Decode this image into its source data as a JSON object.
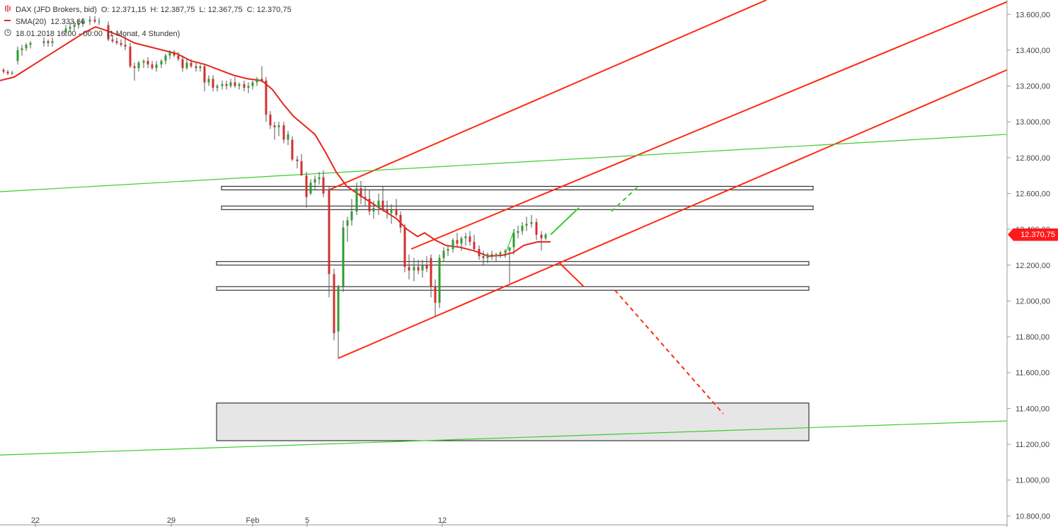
{
  "legend": {
    "symbol": "DAX (JFD Brokers, bid)",
    "open": "O: 12.371,15",
    "high": "H: 12.387,75",
    "low": "L: 12.367,75",
    "close": "C: 12.370,75",
    "sma_label": "SMA(20)",
    "sma_value": "12.333,66",
    "date": "18.01.2018 16:00 - 00:00",
    "period": "(1 Monat, 4 Stunden)"
  },
  "last_price_label": "12.370,75",
  "colors": {
    "up": "#2e9e2e",
    "down": "#d32f2f",
    "sma": "#e8261d",
    "channel": "#ff2a12",
    "trend_green": "#3ccc2c",
    "zone_fill": "#e6e6e6",
    "axis": "#999999",
    "price_tag": "#ff1a1a"
  },
  "icons": [
    "candles-icon",
    "sma-line-icon",
    "clock-icon"
  ],
  "chart_data": {
    "type": "candlestick",
    "title": "DAX (JFD Brokers, bid)",
    "interval": "4 Stunden",
    "ylim": [
      10750,
      13680
    ],
    "y_ticks": [
      10800,
      11000,
      11200,
      11400,
      11600,
      11800,
      12000,
      12200,
      12400,
      12600,
      12800,
      13000,
      13200,
      13400,
      13600
    ],
    "y_tick_labels": [
      "10.800,00",
      "11.000,00",
      "11.200,00",
      "11.400,00",
      "11.600,00",
      "11.800,00",
      "12.000,00",
      "12.200,00",
      "12.400,00",
      "12.600,00",
      "12.800,00",
      "13.000,00",
      "13.200,00",
      "13.400,00",
      "13.600,00"
    ],
    "x_range": [
      0,
      1423
    ],
    "x_ticks": [
      {
        "label": "22",
        "x": 50
      },
      {
        "label": "29",
        "x": 242
      },
      {
        "label": "Feb",
        "x": 357
      },
      {
        "label": "5",
        "x": 434
      },
      {
        "label": "12",
        "x": 625
      }
    ],
    "candles": [
      [
        5,
        13290,
        13300,
        13270,
        13280
      ],
      [
        11,
        13280,
        13290,
        13260,
        13270
      ],
      [
        17,
        13270,
        13285,
        13260,
        13275
      ],
      [
        25,
        13340,
        13420,
        13320,
        13400
      ],
      [
        31,
        13400,
        13430,
        13370,
        13410
      ],
      [
        37,
        13410,
        13440,
        13395,
        13430
      ],
      [
        43,
        13430,
        13450,
        13410,
        13440
      ],
      [
        62,
        13440,
        13470,
        13420,
        13450
      ],
      [
        68,
        13450,
        13460,
        13420,
        13440
      ],
      [
        74,
        13440,
        13470,
        13420,
        13450
      ],
      [
        93,
        13500,
        13540,
        13480,
        13520
      ],
      [
        99,
        13520,
        13550,
        13500,
        13530
      ],
      [
        105,
        13530,
        13560,
        13510,
        13540
      ],
      [
        111,
        13540,
        13570,
        13520,
        13550
      ],
      [
        117,
        13550,
        13580,
        13530,
        13560
      ],
      [
        127,
        13560,
        13590,
        13540,
        13570
      ],
      [
        134,
        13570,
        13590,
        13550,
        13560
      ],
      [
        140,
        13560,
        13580,
        13540,
        13560
      ],
      [
        153,
        13540,
        13560,
        13450,
        13460
      ],
      [
        159,
        13460,
        13480,
        13440,
        13450
      ],
      [
        165,
        13450,
        13470,
        13430,
        13440
      ],
      [
        171,
        13440,
        13460,
        13420,
        13430
      ],
      [
        177,
        13430,
        13480,
        13400,
        13420
      ],
      [
        184,
        13420,
        13440,
        13300,
        13310
      ],
      [
        190,
        13310,
        13330,
        13230,
        13300
      ],
      [
        196,
        13300,
        13340,
        13280,
        13330
      ],
      [
        203,
        13330,
        13350,
        13300,
        13340
      ],
      [
        209,
        13340,
        13360,
        13300,
        13320
      ],
      [
        215,
        13320,
        13340,
        13290,
        13300
      ],
      [
        221,
        13300,
        13340,
        13280,
        13320
      ],
      [
        228,
        13320,
        13350,
        13300,
        13340
      ],
      [
        234,
        13340,
        13380,
        13320,
        13370
      ],
      [
        240,
        13370,
        13400,
        13350,
        13390
      ],
      [
        246,
        13390,
        13400,
        13360,
        13370
      ],
      [
        252,
        13370,
        13390,
        13340,
        13350
      ],
      [
        258,
        13350,
        13370,
        13280,
        13300
      ],
      [
        264,
        13300,
        13350,
        13290,
        13330
      ],
      [
        270,
        13330,
        13350,
        13300,
        13310
      ],
      [
        277,
        13310,
        13330,
        13280,
        13300
      ],
      [
        283,
        13300,
        13320,
        13280,
        13310
      ],
      [
        289,
        13310,
        13320,
        13170,
        13220
      ],
      [
        295,
        13220,
        13260,
        13200,
        13240
      ],
      [
        301,
        13240,
        13260,
        13170,
        13190
      ],
      [
        307,
        13190,
        13210,
        13170,
        13200
      ],
      [
        314,
        13200,
        13230,
        13180,
        13210
      ],
      [
        320,
        13210,
        13230,
        13180,
        13200
      ],
      [
        326,
        13200,
        13240,
        13190,
        13220
      ],
      [
        332,
        13220,
        13250,
        13190,
        13200
      ],
      [
        338,
        13200,
        13220,
        13180,
        13210
      ],
      [
        345,
        13210,
        13230,
        13170,
        13190
      ],
      [
        351,
        13190,
        13220,
        13160,
        13200
      ],
      [
        357,
        13200,
        13230,
        13180,
        13220
      ],
      [
        363,
        13220,
        13250,
        13200,
        13240
      ],
      [
        370,
        13240,
        13310,
        13220,
        13230
      ],
      [
        376,
        13230,
        13250,
        13000,
        13040
      ],
      [
        382,
        13040,
        13060,
        12960,
        12980
      ],
      [
        388,
        12980,
        13000,
        12900,
        12970
      ],
      [
        394,
        12970,
        13000,
        12920,
        12980
      ],
      [
        401,
        12980,
        13000,
        12880,
        12900
      ],
      [
        407,
        12900,
        12950,
        12870,
        12930
      ],
      [
        413,
        12900,
        12920,
        12780,
        12790
      ],
      [
        420,
        12790,
        12810,
        12740,
        12780
      ],
      [
        426,
        12780,
        12820,
        12720,
        12700
      ],
      [
        433,
        12700,
        12720,
        12520,
        12580
      ],
      [
        439,
        12600,
        12680,
        12590,
        12660
      ],
      [
        445,
        12660,
        12700,
        12620,
        12680
      ],
      [
        451,
        12680,
        12720,
        12650,
        12690
      ],
      [
        457,
        12690,
        12730,
        12580,
        12600
      ],
      [
        465,
        12620,
        12640,
        12020,
        12150
      ],
      [
        472,
        12150,
        12180,
        11780,
        11820
      ],
      [
        478,
        11830,
        12090,
        11680,
        12080
      ],
      [
        485,
        12080,
        12450,
        12050,
        12410
      ],
      [
        491,
        12420,
        12470,
        12330,
        12450
      ],
      [
        497,
        12450,
        12570,
        12420,
        12500
      ],
      [
        504,
        12500,
        12660,
        12480,
        12630
      ],
      [
        510,
        12630,
        12670,
        12540,
        12580
      ],
      [
        516,
        12580,
        12640,
        12530,
        12570
      ],
      [
        522,
        12570,
        12620,
        12480,
        12500
      ],
      [
        528,
        12500,
        12560,
        12460,
        12520
      ],
      [
        535,
        12520,
        12600,
        12480,
        12560
      ],
      [
        541,
        12560,
        12640,
        12500,
        12510
      ],
      [
        547,
        12510,
        12560,
        12460,
        12490
      ],
      [
        553,
        12490,
        12540,
        12430,
        12510
      ],
      [
        560,
        12510,
        12570,
        12470,
        12480
      ],
      [
        566,
        12480,
        12500,
        12380,
        12410
      ],
      [
        572,
        12410,
        12430,
        12160,
        12190
      ],
      [
        578,
        12190,
        12260,
        12120,
        12170
      ],
      [
        585,
        12170,
        12240,
        12110,
        12190
      ],
      [
        591,
        12190,
        12230,
        12150,
        12170
      ],
      [
        597,
        12170,
        12230,
        12130,
        12200
      ],
      [
        603,
        12200,
        12250,
        12160,
        12180
      ],
      [
        609,
        12240,
        12260,
        12020,
        12080
      ],
      [
        615,
        12080,
        12120,
        11910,
        11990
      ],
      [
        621,
        11990,
        12260,
        11960,
        12240
      ],
      [
        627,
        12240,
        12300,
        12220,
        12280
      ],
      [
        633,
        12280,
        12310,
        12250,
        12290
      ],
      [
        640,
        12290,
        12350,
        12270,
        12340
      ],
      [
        646,
        12340,
        12380,
        12300,
        12320
      ],
      [
        652,
        12320,
        12360,
        12280,
        12350
      ],
      [
        658,
        12350,
        12380,
        12310,
        12360
      ],
      [
        664,
        12360,
        12390,
        12310,
        12330
      ],
      [
        670,
        12330,
        12370,
        12280,
        12290
      ],
      [
        677,
        12290,
        12310,
        12230,
        12250
      ],
      [
        683,
        12250,
        12280,
        12200,
        12240
      ],
      [
        689,
        12240,
        12270,
        12210,
        12260
      ],
      [
        695,
        12260,
        12280,
        12230,
        12250
      ],
      [
        701,
        12250,
        12270,
        12220,
        12260
      ],
      [
        707,
        12260,
        12280,
        12240,
        12270
      ],
      [
        714,
        12270,
        12290,
        12240,
        12280
      ],
      [
        720,
        12280,
        12300,
        12100,
        12300
      ],
      [
        726,
        12300,
        12400,
        12260,
        12380
      ],
      [
        732,
        12380,
        12420,
        12350,
        12390
      ],
      [
        738,
        12390,
        12440,
        12370,
        12420
      ],
      [
        744,
        12420,
        12470,
        12390,
        12430
      ],
      [
        751,
        12430,
        12480,
        12410,
        12440
      ],
      [
        758,
        12440,
        12460,
        12340,
        12370
      ],
      [
        765,
        12370,
        12390,
        12280,
        12350
      ],
      [
        771,
        12350,
        12380,
        12340,
        12371
      ]
    ],
    "sma": [
      [
        0,
        13230
      ],
      [
        20,
        13250
      ],
      [
        40,
        13300
      ],
      [
        60,
        13350
      ],
      [
        80,
        13400
      ],
      [
        100,
        13450
      ],
      [
        120,
        13500
      ],
      [
        135,
        13530
      ],
      [
        150,
        13510
      ],
      [
        170,
        13480
      ],
      [
        190,
        13440
      ],
      [
        220,
        13410
      ],
      [
        250,
        13380
      ],
      [
        270,
        13340
      ],
      [
        290,
        13320
      ],
      [
        310,
        13290
      ],
      [
        330,
        13260
      ],
      [
        350,
        13240
      ],
      [
        370,
        13230
      ],
      [
        385,
        13180
      ],
      [
        400,
        13100
      ],
      [
        415,
        13030
      ],
      [
        430,
        12980
      ],
      [
        445,
        12930
      ],
      [
        460,
        12830
      ],
      [
        475,
        12720
      ],
      [
        490,
        12640
      ],
      [
        505,
        12600
      ],
      [
        520,
        12560
      ],
      [
        540,
        12510
      ],
      [
        560,
        12460
      ],
      [
        575,
        12400
      ],
      [
        590,
        12360
      ],
      [
        600,
        12380
      ],
      [
        615,
        12340
      ],
      [
        630,
        12310
      ],
      [
        650,
        12300
      ],
      [
        670,
        12280
      ],
      [
        690,
        12250
      ],
      [
        710,
        12255
      ],
      [
        725,
        12270
      ],
      [
        740,
        12310
      ],
      [
        760,
        12330
      ],
      [
        778,
        12330
      ]
    ],
    "lines": [
      {
        "name": "channel-upper",
        "style": "solid",
        "color": "#ff2a12",
        "points": [
          [
            465,
            12620
          ],
          [
            1083,
            13680
          ]
        ]
      },
      {
        "name": "channel-middle",
        "style": "solid",
        "color": "#ff2a12",
        "points": [
          [
            581,
            12290
          ],
          [
            1423,
            13670
          ]
        ]
      },
      {
        "name": "channel-lower",
        "style": "solid",
        "color": "#ff2a12",
        "points": [
          [
            478,
            11680
          ],
          [
            1423,
            13290
          ]
        ]
      },
      {
        "name": "long-trend-upper",
        "style": "solid",
        "color": "#3ccc2c",
        "points": [
          [
            0,
            12610
          ],
          [
            1423,
            12930
          ]
        ]
      },
      {
        "name": "long-trend-lower",
        "style": "solid",
        "color": "#3ccc2c",
        "points": [
          [
            0,
            11140
          ],
          [
            1423,
            11330
          ]
        ]
      },
      {
        "name": "forecast-up-solid",
        "style": "solid",
        "color": "#3ccc2c",
        "points": [
          [
            778,
            12370
          ],
          [
            818,
            12520
          ]
        ]
      },
      {
        "name": "forecast-up-dashed",
        "style": "dashed",
        "color": "#3ccc2c",
        "points": [
          [
            864,
            12500
          ],
          [
            902,
            12640
          ]
        ]
      },
      {
        "name": "forecast-down-solid",
        "style": "solid",
        "color": "#ff2a12",
        "points": [
          [
            791,
            12210
          ],
          [
            825,
            12080
          ]
        ]
      },
      {
        "name": "forecast-down-dashed",
        "style": "dashed",
        "color": "#ff2a12",
        "points": [
          [
            869,
            12060
          ],
          [
            1022,
            11370
          ]
        ]
      },
      {
        "name": "sma-stub",
        "style": "solid",
        "color": "#3ccc2c",
        "points": [
          [
            713,
            12250
          ],
          [
            727,
            12400
          ]
        ]
      }
    ],
    "zones": [
      {
        "name": "resistance-zone-upper",
        "x": [
          313,
          1149
        ],
        "y": [
          12620,
          12640
        ]
      },
      {
        "name": "resistance-zone-lower",
        "x": [
          313,
          1149
        ],
        "y": [
          12510,
          12530
        ]
      },
      {
        "name": "support-zone-upper",
        "x": [
          306,
          1143
        ],
        "y": [
          12200,
          12220
        ]
      },
      {
        "name": "support-zone-lower",
        "x": [
          306,
          1143
        ],
        "y": [
          12060,
          12080
        ]
      },
      {
        "name": "target-zone",
        "x": [
          306,
          1143
        ],
        "y": [
          11220,
          11430
        ],
        "filled": true
      }
    ],
    "last_price": 12370.75
  }
}
